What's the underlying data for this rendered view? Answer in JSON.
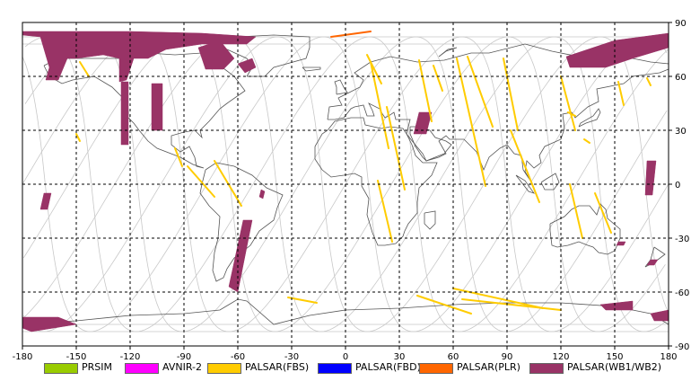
{
  "map": {
    "x_ticks": [
      "-180",
      "-150",
      "-120",
      "-90",
      "-60",
      "-30",
      "0",
      "30",
      "60",
      "90",
      "120",
      "150",
      "180"
    ],
    "y_ticks": [
      "90",
      "60",
      "30",
      "0",
      "-30",
      "-60",
      "-90"
    ]
  },
  "legend": [
    {
      "label": "PRSIM",
      "color": "#99cc00"
    },
    {
      "label": "AVNIR-2",
      "color": "#ff00ff"
    },
    {
      "label": "PALSAR(FBS)",
      "color": "#ffcc00"
    },
    {
      "label": "PALSAR(FBD)",
      "color": "#0000ff"
    },
    {
      "label": "PALSAR(PLR)",
      "color": "#ff6600"
    },
    {
      "label": "PALSAR(WB1/WB2)",
      "color": "#993366"
    }
  ],
  "colors": {
    "wb": "#993366",
    "fbs": "#ffcc00",
    "plr": "#ff6600",
    "orbit": "#c8c8c8",
    "coast": "#555555",
    "grid": "#000000"
  }
}
